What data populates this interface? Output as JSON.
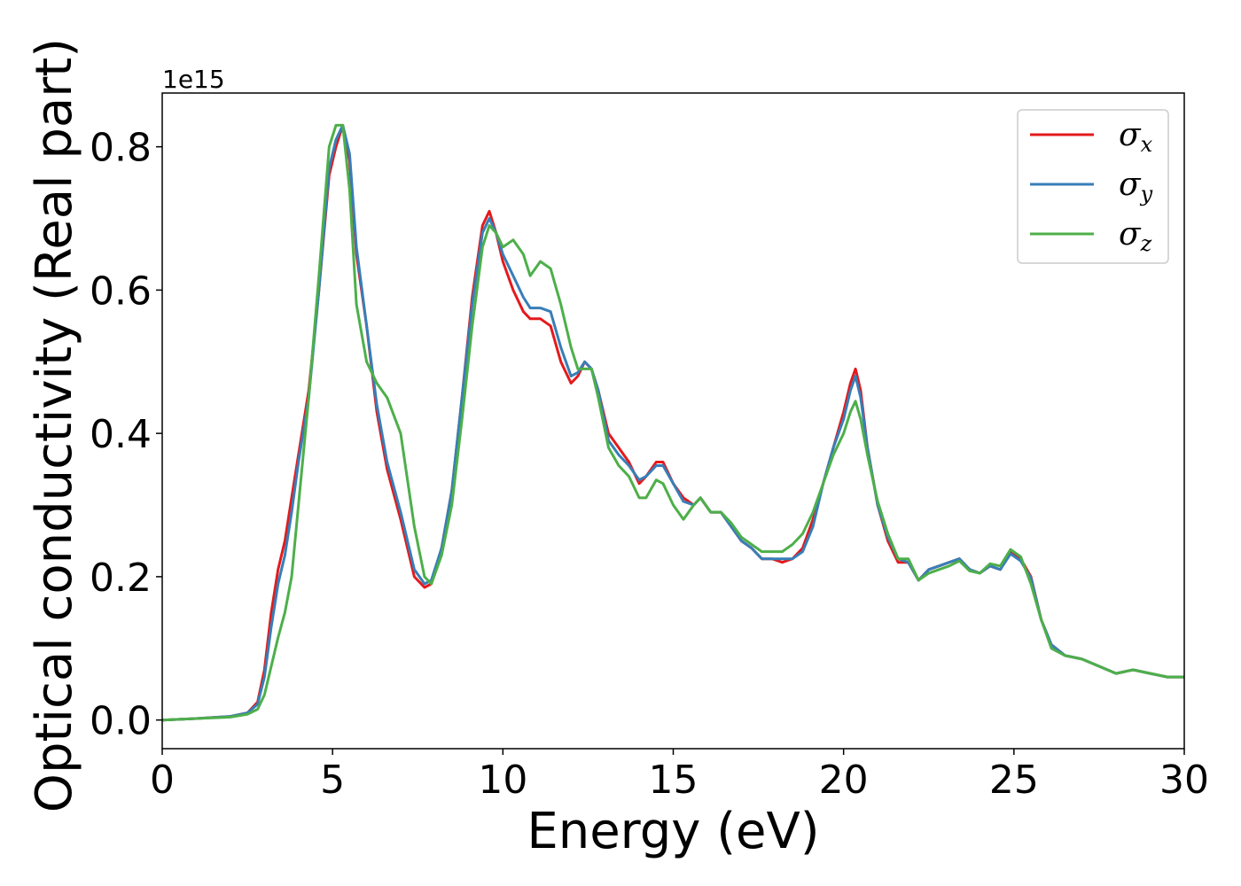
{
  "chart_data": {
    "type": "line",
    "xlabel": "Energy (eV)",
    "ylabel": "Optical conductivity (Real part)",
    "y_offset_label": "1e15",
    "xlim": [
      0,
      30
    ],
    "ylim": [
      -0.04,
      0.875
    ],
    "x_ticks": [
      0,
      5,
      10,
      15,
      20,
      25,
      30
    ],
    "x_tick_labels": [
      "0",
      "5",
      "10",
      "15",
      "20",
      "25",
      "30"
    ],
    "y_ticks": [
      0.0,
      0.2,
      0.4,
      0.6,
      0.8
    ],
    "y_tick_labels": [
      "0.0",
      "0.2",
      "0.4",
      "0.6",
      "0.8"
    ],
    "grid": false,
    "legend_position": "top-right",
    "series": [
      {
        "name": "σx",
        "symbol": "σ",
        "subscript": "x",
        "color": "#e41a1c",
        "x": [
          0,
          1,
          2,
          2.5,
          2.8,
          3.0,
          3.2,
          3.4,
          3.6,
          3.8,
          4.0,
          4.3,
          4.6,
          4.9,
          5.1,
          5.3,
          5.5,
          5.7,
          6.0,
          6.3,
          6.6,
          7.0,
          7.4,
          7.7,
          7.9,
          8.2,
          8.5,
          8.8,
          9.1,
          9.4,
          9.6,
          9.8,
          10.0,
          10.3,
          10.6,
          10.8,
          11.1,
          11.4,
          11.7,
          12.0,
          12.2,
          12.4,
          12.6,
          12.8,
          13.1,
          13.4,
          13.7,
          14.0,
          14.2,
          14.5,
          14.7,
          15.0,
          15.3,
          15.6,
          15.8,
          16.1,
          16.4,
          16.7,
          17.0,
          17.3,
          17.6,
          17.9,
          18.2,
          18.5,
          18.8,
          19.1,
          19.4,
          19.7,
          20.0,
          20.2,
          20.35,
          20.5,
          20.7,
          21.0,
          21.3,
          21.6,
          21.9,
          22.2,
          22.5,
          22.8,
          23.1,
          23.4,
          23.7,
          24.0,
          24.3,
          24.6,
          24.9,
          25.2,
          25.5,
          25.8,
          26.1,
          26.5,
          27.0,
          27.5,
          28.0,
          28.5,
          29.0,
          29.5,
          30.0
        ],
        "y": [
          0.0,
          0.002,
          0.005,
          0.01,
          0.025,
          0.07,
          0.15,
          0.21,
          0.25,
          0.31,
          0.37,
          0.46,
          0.6,
          0.76,
          0.8,
          0.83,
          0.78,
          0.65,
          0.55,
          0.43,
          0.35,
          0.28,
          0.2,
          0.185,
          0.19,
          0.24,
          0.32,
          0.45,
          0.59,
          0.69,
          0.71,
          0.68,
          0.64,
          0.6,
          0.57,
          0.56,
          0.56,
          0.55,
          0.5,
          0.47,
          0.48,
          0.5,
          0.49,
          0.46,
          0.4,
          0.38,
          0.36,
          0.33,
          0.34,
          0.36,
          0.36,
          0.33,
          0.31,
          0.3,
          0.31,
          0.29,
          0.29,
          0.27,
          0.25,
          0.24,
          0.225,
          0.225,
          0.22,
          0.225,
          0.24,
          0.28,
          0.33,
          0.38,
          0.43,
          0.47,
          0.49,
          0.46,
          0.38,
          0.3,
          0.25,
          0.22,
          0.22,
          0.195,
          0.21,
          0.215,
          0.22,
          0.225,
          0.21,
          0.205,
          0.215,
          0.21,
          0.235,
          0.225,
          0.2,
          0.14,
          0.105,
          0.09,
          0.085,
          0.075,
          0.065,
          0.07,
          0.065,
          0.06,
          0.06
        ]
      },
      {
        "name": "σy",
        "symbol": "σ",
        "subscript": "y",
        "color": "#377eb8",
        "x": [
          0,
          1,
          2,
          2.5,
          2.8,
          3.0,
          3.2,
          3.4,
          3.6,
          3.8,
          4.0,
          4.3,
          4.6,
          4.9,
          5.1,
          5.3,
          5.5,
          5.7,
          6.0,
          6.3,
          6.6,
          7.0,
          7.4,
          7.7,
          7.9,
          8.2,
          8.5,
          8.8,
          9.1,
          9.4,
          9.6,
          9.8,
          10.0,
          10.3,
          10.6,
          10.8,
          11.1,
          11.4,
          11.7,
          12.0,
          12.2,
          12.4,
          12.6,
          12.8,
          13.1,
          13.4,
          13.7,
          14.0,
          14.2,
          14.5,
          14.7,
          15.0,
          15.3,
          15.6,
          15.8,
          16.1,
          16.4,
          16.7,
          17.0,
          17.3,
          17.6,
          17.9,
          18.2,
          18.5,
          18.8,
          19.1,
          19.4,
          19.7,
          20.0,
          20.2,
          20.35,
          20.5,
          20.7,
          21.0,
          21.3,
          21.6,
          21.9,
          22.2,
          22.5,
          22.8,
          23.1,
          23.4,
          23.7,
          24.0,
          24.3,
          24.6,
          24.9,
          25.2,
          25.5,
          25.8,
          26.1,
          26.5,
          27.0,
          27.5,
          28.0,
          28.5,
          29.0,
          29.5,
          30.0
        ],
        "y": [
          0.0,
          0.002,
          0.005,
          0.01,
          0.022,
          0.06,
          0.13,
          0.19,
          0.23,
          0.29,
          0.36,
          0.45,
          0.6,
          0.77,
          0.81,
          0.83,
          0.79,
          0.66,
          0.55,
          0.44,
          0.36,
          0.29,
          0.21,
          0.19,
          0.195,
          0.24,
          0.32,
          0.45,
          0.58,
          0.68,
          0.7,
          0.68,
          0.65,
          0.62,
          0.59,
          0.575,
          0.575,
          0.57,
          0.52,
          0.48,
          0.485,
          0.5,
          0.49,
          0.46,
          0.39,
          0.37,
          0.355,
          0.335,
          0.34,
          0.355,
          0.355,
          0.33,
          0.305,
          0.3,
          0.31,
          0.29,
          0.29,
          0.27,
          0.25,
          0.24,
          0.225,
          0.225,
          0.225,
          0.225,
          0.235,
          0.27,
          0.33,
          0.38,
          0.42,
          0.46,
          0.48,
          0.45,
          0.38,
          0.3,
          0.255,
          0.225,
          0.22,
          0.195,
          0.21,
          0.215,
          0.22,
          0.225,
          0.21,
          0.205,
          0.215,
          0.21,
          0.232,
          0.222,
          0.198,
          0.14,
          0.105,
          0.09,
          0.085,
          0.075,
          0.065,
          0.07,
          0.065,
          0.06,
          0.06
        ]
      },
      {
        "name": "σz",
        "symbol": "σ",
        "subscript": "z",
        "color": "#4daf4a",
        "x": [
          0,
          1,
          2,
          2.5,
          2.8,
          3.0,
          3.2,
          3.4,
          3.6,
          3.8,
          4.0,
          4.3,
          4.6,
          4.9,
          5.1,
          5.3,
          5.5,
          5.7,
          6.0,
          6.3,
          6.6,
          7.0,
          7.4,
          7.7,
          7.9,
          8.2,
          8.5,
          8.8,
          9.1,
          9.4,
          9.6,
          9.8,
          10.0,
          10.3,
          10.6,
          10.8,
          11.1,
          11.4,
          11.7,
          12.0,
          12.2,
          12.4,
          12.6,
          12.8,
          13.1,
          13.4,
          13.7,
          14.0,
          14.2,
          14.5,
          14.7,
          15.0,
          15.3,
          15.6,
          15.8,
          16.1,
          16.4,
          16.7,
          17.0,
          17.3,
          17.6,
          17.9,
          18.2,
          18.5,
          18.8,
          19.1,
          19.4,
          19.7,
          20.0,
          20.2,
          20.35,
          20.5,
          20.7,
          21.0,
          21.3,
          21.6,
          21.9,
          22.2,
          22.5,
          22.8,
          23.1,
          23.4,
          23.7,
          24.0,
          24.3,
          24.6,
          24.9,
          25.2,
          25.5,
          25.8,
          26.1,
          26.5,
          27.0,
          27.5,
          28.0,
          28.5,
          29.0,
          29.5,
          30.0
        ],
        "y": [
          0.0,
          0.002,
          0.004,
          0.008,
          0.015,
          0.035,
          0.075,
          0.115,
          0.15,
          0.2,
          0.3,
          0.45,
          0.62,
          0.8,
          0.83,
          0.83,
          0.74,
          0.58,
          0.5,
          0.47,
          0.45,
          0.4,
          0.27,
          0.2,
          0.19,
          0.23,
          0.3,
          0.42,
          0.55,
          0.66,
          0.69,
          0.68,
          0.66,
          0.67,
          0.65,
          0.62,
          0.64,
          0.63,
          0.58,
          0.52,
          0.49,
          0.49,
          0.49,
          0.45,
          0.38,
          0.355,
          0.34,
          0.31,
          0.31,
          0.335,
          0.33,
          0.3,
          0.28,
          0.3,
          0.31,
          0.29,
          0.29,
          0.275,
          0.255,
          0.245,
          0.235,
          0.235,
          0.235,
          0.245,
          0.26,
          0.29,
          0.33,
          0.37,
          0.4,
          0.43,
          0.445,
          0.42,
          0.37,
          0.305,
          0.26,
          0.225,
          0.225,
          0.195,
          0.205,
          0.21,
          0.215,
          0.222,
          0.208,
          0.205,
          0.218,
          0.215,
          0.238,
          0.228,
          0.19,
          0.14,
          0.1,
          0.09,
          0.085,
          0.075,
          0.065,
          0.07,
          0.065,
          0.06,
          0.06
        ]
      }
    ]
  }
}
